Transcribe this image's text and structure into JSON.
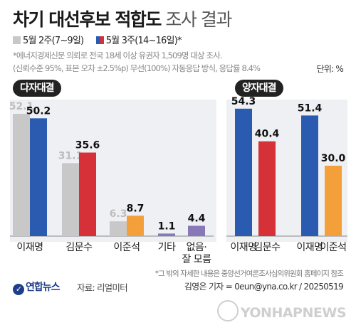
{
  "title": {
    "bold": "차기 대선후보 적합도",
    "light": "조사 결과"
  },
  "legend": {
    "week2": "5월 2주(7~9일)",
    "week3": "5월 3주(14~16일)*"
  },
  "notes": [
    "*에너지경제신문 의뢰로 전국 18세 이상 유권자 1,509명 대상 조사.",
    "(신뢰수준 95%, 표본 오차 ±2.5%p) 무선(100%) 자동응답 방식, 응답률 8.4%"
  ],
  "unit": "단위: %",
  "colors": {
    "blue": "#2a5bb0",
    "red": "#d63039",
    "orange": "#f4a03a",
    "purple": "#8878b8",
    "gray": "#c8c8c8"
  },
  "chart_data": [
    {
      "type": "bar",
      "title": "다자대결",
      "categories": [
        "이재명",
        "김문수",
        "이준석",
        "기타",
        "없음·\n잘 모름"
      ],
      "series": [
        {
          "name": "5월 2주(7~9일)",
          "values": [
            52.1,
            31.1,
            6.3,
            null,
            null
          ]
        },
        {
          "name": "5월 3주(14~16일)*",
          "values": [
            50.2,
            35.6,
            8.7,
            1.1,
            4.4
          ]
        }
      ]
    },
    {
      "type": "bar",
      "title": "양자대결",
      "categories": [
        "이재명",
        "김문수",
        "이재명",
        "이준석"
      ],
      "values": [
        54.3,
        40.4,
        51.4,
        30.0
      ]
    }
  ],
  "footnote": "*그 밖의 자세한 내용은 중앙선거여론조사심의위원회 홈페이지 참조",
  "logo": "연합뉴스",
  "source": "자료: 리얼미터",
  "credit": "김영은 기자 = 0eun@yna.co.kr / 20250519",
  "watermark": "YONHAPNEWS"
}
